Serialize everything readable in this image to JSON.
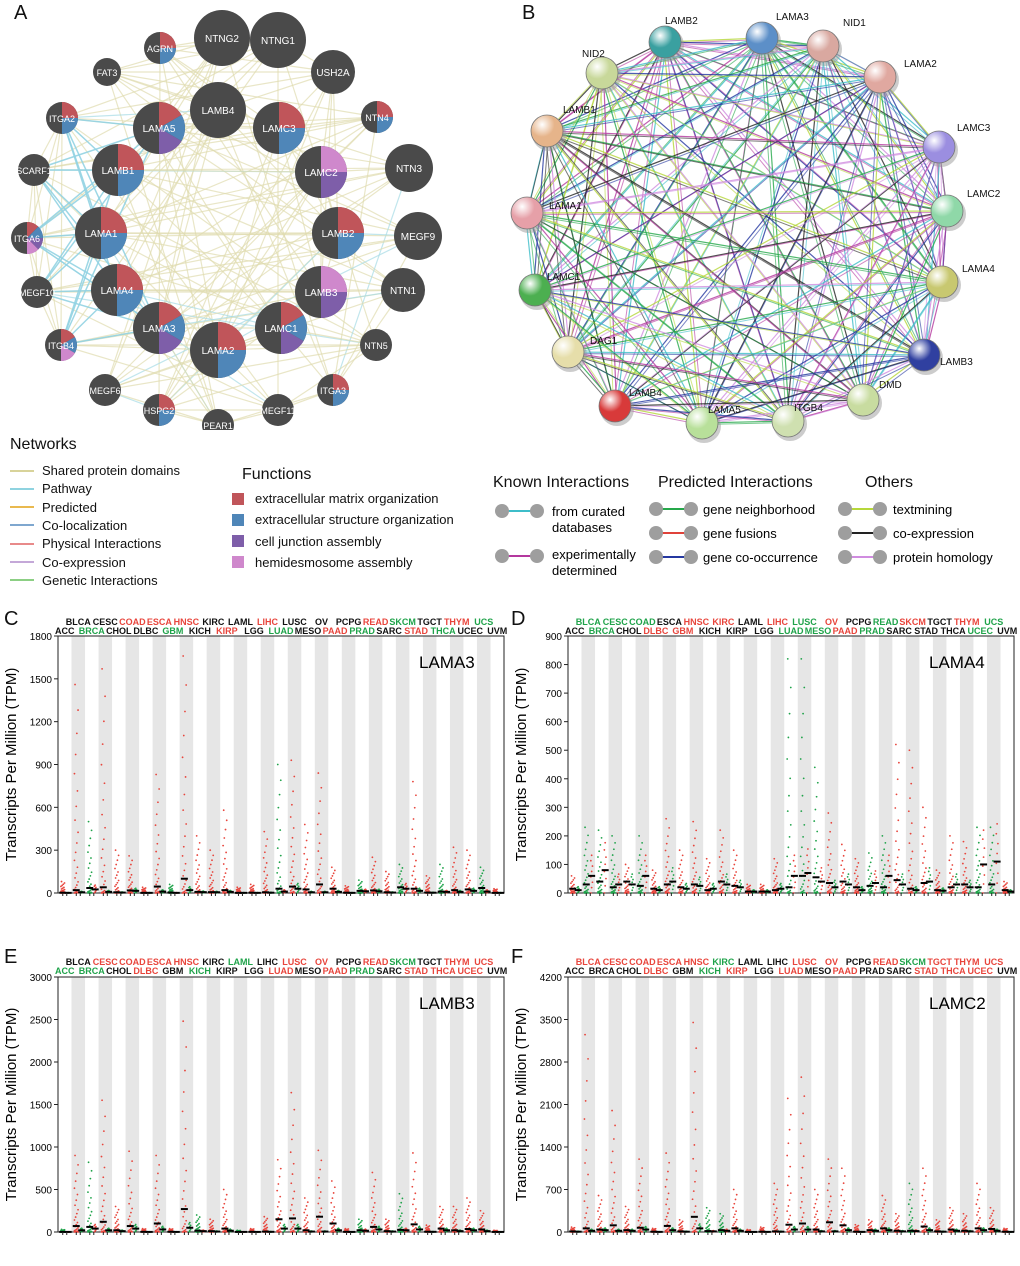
{
  "panels": {
    "A": "A",
    "B": "B",
    "C": "C",
    "D": "D",
    "E": "E",
    "F": "F"
  },
  "colors": {
    "nodeDark": "#4a4a4a",
    "ecmOrg": "#c0555a",
    "esOrg": "#4f86b8",
    "cellJunction": "#7e5ea9",
    "hemidesmosome": "#cf88cc",
    "tumor": "#e8453c",
    "normal": "#1fa34a",
    "gridShade": "#e6e6e6"
  },
  "networkA": {
    "nodes": [
      {
        "label": "AGRN",
        "parts": [
          "ecm",
          "es"
        ]
      },
      {
        "label": "NTNG2",
        "parts": []
      },
      {
        "label": "NTNG1",
        "parts": []
      },
      {
        "label": "FAT3",
        "parts": []
      },
      {
        "label": "USH2A",
        "parts": []
      },
      {
        "label": "LAMB4",
        "parts": []
      },
      {
        "label": "ITGA2",
        "parts": [
          "ecm",
          "es"
        ]
      },
      {
        "label": "LAMA5",
        "parts": [
          "ecm",
          "es",
          "cj"
        ]
      },
      {
        "label": "LAMC3",
        "parts": [
          "ecm",
          "es"
        ]
      },
      {
        "label": "NTN4",
        "parts": [
          "ecm",
          "es"
        ]
      },
      {
        "label": "SCARF1",
        "parts": []
      },
      {
        "label": "LAMB1",
        "parts": [
          "ecm",
          "es"
        ]
      },
      {
        "label": "LAMC2",
        "parts": [
          "hd",
          "cj"
        ]
      },
      {
        "label": "NTN3",
        "parts": []
      },
      {
        "label": "ITGA6",
        "parts": [
          "ecm",
          "es",
          "cj",
          "hd"
        ]
      },
      {
        "label": "LAMA1",
        "parts": [
          "ecm",
          "es"
        ]
      },
      {
        "label": "LAMB2",
        "parts": [
          "ecm",
          "es"
        ]
      },
      {
        "label": "MEGF9",
        "parts": []
      },
      {
        "label": "MEGF10",
        "parts": []
      },
      {
        "label": "LAMA4",
        "parts": [
          "ecm",
          "es"
        ]
      },
      {
        "label": "LAMB3",
        "parts": [
          "hd",
          "cj"
        ]
      },
      {
        "label": "NTN1",
        "parts": []
      },
      {
        "label": "ITGB4",
        "parts": [
          "ecm",
          "es",
          "hd"
        ]
      },
      {
        "label": "LAMA3",
        "parts": [
          "ecm",
          "es",
          "cj"
        ]
      },
      {
        "label": "LAMA2",
        "parts": [
          "ecm",
          "es"
        ]
      },
      {
        "label": "LAMC1",
        "parts": [
          "ecm",
          "es",
          "cj"
        ]
      },
      {
        "label": "NTN5",
        "parts": []
      },
      {
        "label": "MEGF6",
        "parts": []
      },
      {
        "label": "HSPG2",
        "parts": [
          "ecm",
          "es"
        ]
      },
      {
        "label": "PEAR1",
        "parts": []
      },
      {
        "label": "MEGF11",
        "parts": []
      },
      {
        "label": "ITGA3",
        "parts": [
          "ecm",
          "es"
        ]
      }
    ]
  },
  "legendA": {
    "networksTitle": "Networks",
    "networks": [
      {
        "label": "Shared protein domains",
        "color": "#d8d39a"
      },
      {
        "label": "Pathway",
        "color": "#8fd3e0"
      },
      {
        "label": "Predicted",
        "color": "#e9b94f"
      },
      {
        "label": "Co-localization",
        "color": "#7fa7cf"
      },
      {
        "label": "Physical Interactions",
        "color": "#e88a8a"
      },
      {
        "label": "Co-expression",
        "color": "#c4a8d8"
      },
      {
        "label": "Genetic Interactions",
        "color": "#8ccf84"
      }
    ],
    "functionsTitle": "Functions",
    "functions": [
      {
        "label": "extracellular matrix organization",
        "color": "#c0555a"
      },
      {
        "label": "extracellular structure organization",
        "color": "#4f86b8"
      },
      {
        "label": "cell junction assembly",
        "color": "#7e5ea9"
      },
      {
        "label": "hemidesmosome assembly",
        "color": "#cf88cc"
      }
    ]
  },
  "networkB": {
    "nodes": [
      {
        "label": "LAMB2",
        "color": "#3aa0a0"
      },
      {
        "label": "LAMA3",
        "color": "#5c8fc8"
      },
      {
        "label": "NID1",
        "color": "#d9a8a0"
      },
      {
        "label": "NID2",
        "color": "#c8d89a"
      },
      {
        "label": "LAMA2",
        "color": "#e0a8a0"
      },
      {
        "label": "LAMB1",
        "color": "#e6b48a"
      },
      {
        "label": "LAMC3",
        "color": "#9b8ee0"
      },
      {
        "label": "LAMC2",
        "color": "#8fd8a8"
      },
      {
        "label": "LAMA1",
        "color": "#e6a0a8"
      },
      {
        "label": "LAMA4",
        "color": "#c8c870"
      },
      {
        "label": "LAMC1",
        "color": "#4caf50"
      },
      {
        "label": "LAMB3",
        "color": "#3040a0"
      },
      {
        "label": "DAG1",
        "color": "#e6deaa"
      },
      {
        "label": "DMD",
        "color": "#c8dca0"
      },
      {
        "label": "LAMB4",
        "color": "#d83a3a"
      },
      {
        "label": "LAMA5",
        "color": "#b8e09a"
      },
      {
        "label": "ITGB4",
        "color": "#cfe0b0"
      }
    ]
  },
  "legendB": {
    "known": {
      "title": "Known Interactions",
      "items": [
        {
          "label": "from curated databases",
          "color": "#3dbdc9"
        },
        {
          "label": "experimentally determined",
          "color": "#b4389e"
        }
      ]
    },
    "predicted": {
      "title": "Predicted Interactions",
      "items": [
        {
          "label": "gene neighborhood",
          "color": "#25a84a"
        },
        {
          "label": "gene fusions",
          "color": "#e0423a"
        },
        {
          "label": "gene co-occurrence",
          "color": "#2437a0"
        }
      ]
    },
    "others": {
      "title": "Others",
      "items": [
        {
          "label": "textmining",
          "color": "#b6d73a"
        },
        {
          "label": "co-expression",
          "color": "#222222"
        },
        {
          "label": "protein homology",
          "color": "#d08ce0"
        }
      ]
    }
  },
  "cancers": [
    "ACC",
    "BLCA",
    "BRCA",
    "CESC",
    "CHOL",
    "COAD",
    "DLBC",
    "ESCA",
    "GBM",
    "HNSC",
    "KICH",
    "KIRC",
    "KIRP",
    "LAML",
    "LGG",
    "LIHC",
    "LUAD",
    "LUSC",
    "MESO",
    "OV",
    "PAAD",
    "PCPG",
    "PRAD",
    "READ",
    "SARC",
    "SKCM",
    "STAD",
    "TGCT",
    "THCA",
    "THYM",
    "UCEC",
    "UCS",
    "UVM"
  ],
  "chart_data": [
    {
      "type": "scatter",
      "panel": "C",
      "title": "LAMA3",
      "ylabel": "Transcripts Per Million (TPM)",
      "ylim": [
        0,
        1800
      ],
      "yticks": [
        0,
        300,
        600,
        900,
        1200,
        1500,
        1800
      ],
      "categories": [
        "ACC",
        "BLCA",
        "BRCA",
        "CESC",
        "CHOL",
        "COAD",
        "DLBC",
        "ESCA",
        "GBM",
        "HNSC",
        "KICH",
        "KIRC",
        "KIRP",
        "LAML",
        "LGG",
        "LIHC",
        "LUAD",
        "LUSC",
        "MESO",
        "OV",
        "PAAD",
        "PCPG",
        "PRAD",
        "READ",
        "SARC",
        "SKCM",
        "STAD",
        "TGCT",
        "THCA",
        "THYM",
        "UCEC",
        "UCS",
        "UVM"
      ],
      "label_colors": [
        "k",
        "k",
        "g",
        "k",
        "k",
        "r",
        "k",
        "r",
        "g",
        "r",
        "k",
        "k",
        "r",
        "k",
        "k",
        "r",
        "g",
        "k",
        "k",
        "k",
        "r",
        "k",
        "g",
        "r",
        "k",
        "g",
        "r",
        "k",
        "g",
        "r",
        "k",
        "g",
        "k"
      ],
      "tumor_median": [
        2,
        20,
        35,
        40,
        5,
        18,
        1,
        45,
        3,
        100,
        8,
        6,
        20,
        1,
        2,
        5,
        30,
        45,
        25,
        60,
        30,
        2,
        15,
        18,
        5,
        40,
        30,
        3,
        10,
        20,
        25,
        35,
        1
      ],
      "normal_median": [
        1,
        5,
        25,
        8,
        3,
        15,
        1,
        10,
        1,
        20,
        6,
        5,
        8,
        1,
        1,
        2,
        10,
        30,
        5,
        5,
        8,
        1,
        12,
        12,
        3,
        30,
        15,
        2,
        8,
        8,
        15,
        10,
        1
      ],
      "tumor_max": [
        80,
        1460,
        500,
        1570,
        300,
        260,
        40,
        830,
        60,
        1660,
        400,
        300,
        580,
        40,
        60,
        430,
        900,
        930,
        480,
        840,
        180,
        50,
        90,
        250,
        150,
        200,
        780,
        120,
        200,
        320,
        300,
        180,
        30
      ]
    },
    {
      "type": "scatter",
      "panel": "D",
      "title": "LAMA4",
      "ylabel": "Transcripts Per Million (TPM)",
      "ylim": [
        0,
        900
      ],
      "yticks": [
        0,
        100,
        200,
        300,
        400,
        500,
        600,
        700,
        800,
        900
      ],
      "categories": [
        "ACC",
        "BLCA",
        "BRCA",
        "CESC",
        "CHOL",
        "COAD",
        "DLBC",
        "ESCA",
        "GBM",
        "HNSC",
        "KICH",
        "KIRC",
        "KIRP",
        "LAML",
        "LGG",
        "LIHC",
        "LUAD",
        "LUSC",
        "MESO",
        "OV",
        "PAAD",
        "PCPG",
        "PRAD",
        "READ",
        "SARC",
        "SKCM",
        "STAD",
        "TGCT",
        "THCA",
        "THYM",
        "UCEC",
        "UCS",
        "UVM"
      ],
      "label_colors": [
        "k",
        "g",
        "g",
        "g",
        "k",
        "g",
        "r",
        "k",
        "r",
        "r",
        "k",
        "r",
        "k",
        "k",
        "k",
        "r",
        "g",
        "g",
        "g",
        "r",
        "r",
        "k",
        "g",
        "g",
        "k",
        "r",
        "k",
        "k",
        "k",
        "r",
        "g",
        "g",
        "k"
      ],
      "tumor_median": [
        15,
        30,
        40,
        20,
        40,
        25,
        15,
        30,
        20,
        30,
        10,
        40,
        25,
        5,
        5,
        10,
        20,
        60,
        55,
        35,
        40,
        20,
        25,
        20,
        45,
        15,
        35,
        10,
        20,
        30,
        20,
        30,
        10
      ],
      "normal_median": [
        10,
        60,
        80,
        30,
        30,
        60,
        10,
        40,
        15,
        25,
        15,
        30,
        20,
        5,
        5,
        15,
        60,
        70,
        40,
        20,
        30,
        10,
        35,
        60,
        30,
        10,
        40,
        8,
        30,
        20,
        100,
        110,
        5
      ],
      "tumor_max": [
        60,
        230,
        220,
        200,
        100,
        200,
        80,
        260,
        150,
        250,
        120,
        220,
        150,
        30,
        30,
        120,
        820,
        820,
        440,
        280,
        170,
        120,
        140,
        200,
        520,
        500,
        300,
        80,
        200,
        180,
        230,
        230,
        40
      ]
    },
    {
      "type": "scatter",
      "panel": "E",
      "title": "LAMB3",
      "ylabel": "Transcripts Per Million (TPM)",
      "ylim": [
        0,
        3000
      ],
      "yticks": [
        0,
        500,
        1000,
        1500,
        2000,
        2500,
        3000
      ],
      "categories": [
        "ACC",
        "BLCA",
        "BRCA",
        "CESC",
        "CHOL",
        "COAD",
        "DLBC",
        "ESCA",
        "GBM",
        "HNSC",
        "KICH",
        "KIRC",
        "KIRP",
        "LAML",
        "LGG",
        "LIHC",
        "LUAD",
        "LUSC",
        "MESO",
        "OV",
        "PAAD",
        "PCPG",
        "PRAD",
        "READ",
        "SARC",
        "SKCM",
        "STAD",
        "TGCT",
        "THCA",
        "THYM",
        "UCEC",
        "UCS",
        "UVM"
      ],
      "label_colors": [
        "g",
        "k",
        "g",
        "r",
        "k",
        "r",
        "r",
        "r",
        "k",
        "r",
        "g",
        "k",
        "k",
        "g",
        "k",
        "k",
        "r",
        "r",
        "k",
        "r",
        "r",
        "k",
        "g",
        "r",
        "k",
        "g",
        "r",
        "k",
        "r",
        "r",
        "r",
        "r",
        "k"
      ],
      "tumor_median": [
        1,
        70,
        60,
        120,
        20,
        70,
        2,
        100,
        3,
        270,
        15,
        10,
        40,
        1,
        2,
        5,
        150,
        160,
        20,
        180,
        100,
        2,
        20,
        60,
        10,
        25,
        90,
        3,
        40,
        20,
        35,
        30,
        1
      ],
      "normal_median": [
        1,
        20,
        40,
        20,
        10,
        40,
        1,
        30,
        1,
        50,
        10,
        5,
        15,
        1,
        1,
        2,
        40,
        40,
        5,
        5,
        20,
        1,
        15,
        30,
        5,
        20,
        30,
        2,
        20,
        10,
        20,
        10,
        1
      ],
      "tumor_max": [
        30,
        900,
        820,
        1550,
        300,
        950,
        40,
        900,
        40,
        2480,
        200,
        150,
        500,
        20,
        40,
        180,
        850,
        1640,
        400,
        960,
        600,
        40,
        150,
        700,
        150,
        450,
        930,
        80,
        300,
        300,
        400,
        250,
        20
      ]
    },
    {
      "type": "scatter",
      "panel": "F",
      "title": "LAMC2",
      "ylabel": "Transcripts Per Million (TPM)",
      "ylim": [
        0,
        4200
      ],
      "yticks": [
        0,
        700,
        1400,
        2100,
        2800,
        3500,
        4200
      ],
      "categories": [
        "ACC",
        "BLCA",
        "BRCA",
        "CESC",
        "CHOL",
        "COAD",
        "DLBC",
        "ESCA",
        "GBM",
        "HNSC",
        "KICH",
        "KIRC",
        "KIRP",
        "LAML",
        "LGG",
        "LIHC",
        "LUAD",
        "LUSC",
        "MESO",
        "OV",
        "PAAD",
        "PCPG",
        "PRAD",
        "READ",
        "SARC",
        "SKCM",
        "STAD",
        "TGCT",
        "THCA",
        "THYM",
        "UCEC",
        "UCS",
        "UVM"
      ],
      "label_colors": [
        "k",
        "r",
        "k",
        "r",
        "k",
        "r",
        "r",
        "r",
        "k",
        "r",
        "g",
        "g",
        "r",
        "k",
        "k",
        "k",
        "r",
        "r",
        "k",
        "r",
        "r",
        "k",
        "k",
        "r",
        "k",
        "g",
        "r",
        "r",
        "r",
        "r",
        "r",
        "r",
        "k"
      ],
      "tumor_median": [
        10,
        60,
        40,
        110,
        30,
        70,
        5,
        100,
        10,
        250,
        15,
        30,
        60,
        2,
        5,
        10,
        120,
        140,
        40,
        160,
        110,
        5,
        30,
        60,
        20,
        20,
        90,
        10,
        40,
        20,
        60,
        50,
        5
      ],
      "normal_median": [
        5,
        20,
        30,
        20,
        20,
        40,
        2,
        30,
        5,
        60,
        10,
        20,
        20,
        1,
        2,
        5,
        40,
        40,
        10,
        10,
        30,
        2,
        20,
        30,
        10,
        15,
        30,
        5,
        20,
        10,
        30,
        20,
        2
      ],
      "tumor_max": [
        80,
        3250,
        600,
        2000,
        420,
        1200,
        60,
        1300,
        200,
        3450,
        400,
        300,
        700,
        40,
        80,
        800,
        2200,
        2550,
        700,
        1200,
        1050,
        120,
        200,
        600,
        300,
        800,
        1050,
        200,
        400,
        300,
        800,
        400,
        60
      ]
    }
  ]
}
